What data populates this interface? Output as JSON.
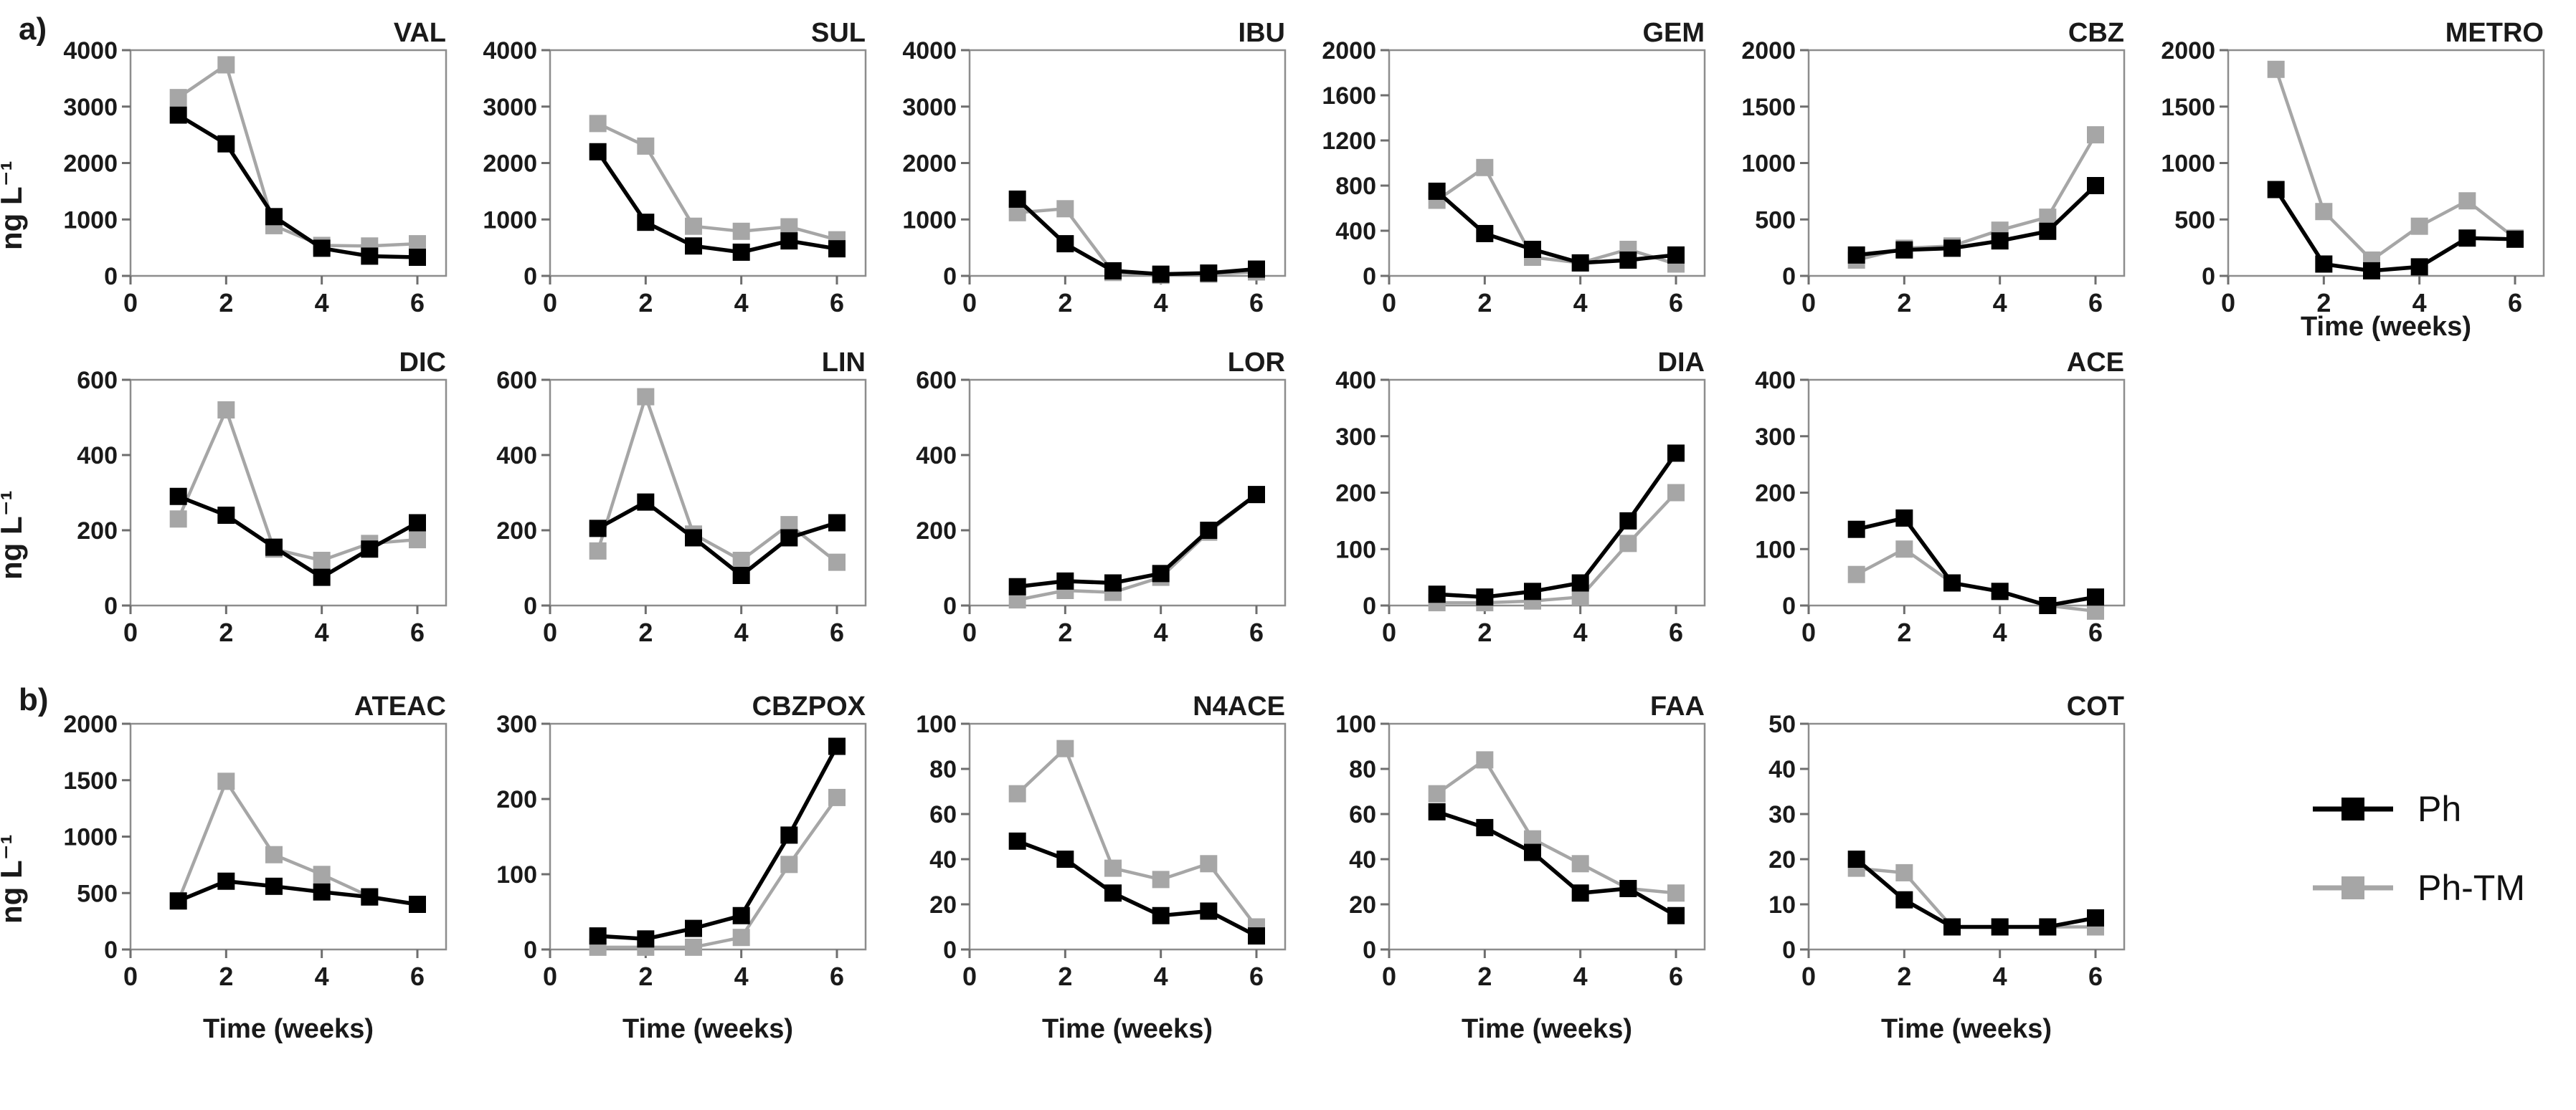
{
  "figure": {
    "panel_a": "a)",
    "panel_b": "b)"
  },
  "axis": {
    "y_label": "ng L⁻¹",
    "x_label": "Time (weeks)"
  },
  "legend": [
    {
      "name": "Ph",
      "color": "#000000"
    },
    {
      "name": "Ph-TM",
      "color": "#a6a6a6"
    }
  ],
  "chart_data": [
    {
      "id": "VAL",
      "row": "a1",
      "type": "line",
      "title": "VAL",
      "x": [
        1,
        2,
        3,
        4,
        5,
        6
      ],
      "xlim": [
        0,
        6.6
      ],
      "xticks": [
        0,
        2,
        4,
        6
      ],
      "ylim": [
        0,
        4000
      ],
      "yticks": [
        0,
        1000,
        2000,
        3000,
        4000
      ],
      "xlabel": false,
      "series": [
        {
          "name": "Ph",
          "values": [
            2850,
            2340,
            1050,
            490,
            350,
            330
          ]
        },
        {
          "name": "Ph-TM",
          "values": [
            3160,
            3740,
            890,
            540,
            530,
            570
          ]
        }
      ]
    },
    {
      "id": "SUL",
      "row": "a1",
      "type": "line",
      "title": "SUL",
      "x": [
        1,
        2,
        3,
        4,
        5,
        6
      ],
      "xlim": [
        0,
        6.6
      ],
      "xticks": [
        0,
        2,
        4,
        6
      ],
      "ylim": [
        0,
        4000
      ],
      "yticks": [
        0,
        1000,
        2000,
        3000,
        4000
      ],
      "xlabel": false,
      "series": [
        {
          "name": "Ph",
          "values": [
            2200,
            950,
            530,
            420,
            620,
            480
          ]
        },
        {
          "name": "Ph-TM",
          "values": [
            2700,
            2300,
            880,
            790,
            870,
            640
          ]
        }
      ]
    },
    {
      "id": "IBU",
      "row": "a1",
      "type": "line",
      "title": "IBU",
      "x": [
        1,
        2,
        3,
        4,
        5,
        6
      ],
      "xlim": [
        0,
        6.6
      ],
      "xticks": [
        0,
        2,
        4,
        6
      ],
      "ylim": [
        0,
        4000
      ],
      "yticks": [
        0,
        1000,
        2000,
        3000,
        4000
      ],
      "xlabel": false,
      "series": [
        {
          "name": "Ph",
          "values": [
            1360,
            570,
            90,
            30,
            50,
            120
          ]
        },
        {
          "name": "Ph-TM",
          "values": [
            1120,
            1190,
            60,
            10,
            30,
            70
          ]
        }
      ]
    },
    {
      "id": "GEM",
      "row": "a1",
      "type": "line",
      "title": "GEM",
      "x": [
        1,
        2,
        3,
        4,
        5,
        6
      ],
      "xlim": [
        0,
        6.6
      ],
      "xticks": [
        0,
        2,
        4,
        6
      ],
      "ylim": [
        0,
        2000
      ],
      "yticks": [
        0,
        400,
        800,
        1200,
        1600,
        2000
      ],
      "xlabel": false,
      "series": [
        {
          "name": "Ph",
          "values": [
            750,
            375,
            235,
            115,
            140,
            185
          ]
        },
        {
          "name": "Ph-TM",
          "values": [
            670,
            960,
            165,
            115,
            235,
            105
          ]
        }
      ]
    },
    {
      "id": "CBZ",
      "row": "a1",
      "type": "line",
      "title": "CBZ",
      "x": [
        1,
        2,
        3,
        4,
        5,
        6
      ],
      "xlim": [
        0,
        6.6
      ],
      "xticks": [
        0,
        2,
        4,
        6
      ],
      "ylim": [
        0,
        2000
      ],
      "yticks": [
        0,
        500,
        1000,
        1500,
        2000
      ],
      "xlabel": false,
      "series": [
        {
          "name": "Ph",
          "values": [
            185,
            230,
            245,
            310,
            395,
            800
          ]
        },
        {
          "name": "Ph-TM",
          "values": [
            140,
            245,
            265,
            405,
            520,
            1250
          ]
        }
      ]
    },
    {
      "id": "METRO",
      "row": "a1",
      "type": "line",
      "title": "METRO",
      "x": [
        1,
        2,
        3,
        4,
        5,
        6
      ],
      "xlim": [
        0,
        6.6
      ],
      "xticks": [
        0,
        2,
        4,
        6
      ],
      "ylim": [
        0,
        2000
      ],
      "yticks": [
        0,
        500,
        1000,
        1500,
        2000
      ],
      "xlabel": true,
      "series": [
        {
          "name": "Ph",
          "values": [
            765,
            105,
            45,
            80,
            335,
            325
          ]
        },
        {
          "name": "Ph-TM",
          "values": [
            1830,
            570,
            140,
            440,
            665,
            335
          ]
        }
      ]
    },
    {
      "id": "DIC",
      "row": "a2",
      "type": "line",
      "title": "DIC",
      "x": [
        1,
        2,
        3,
        4,
        5,
        6
      ],
      "xlim": [
        0,
        6.6
      ],
      "xticks": [
        0,
        2,
        4,
        6
      ],
      "ylim": [
        0,
        600
      ],
      "yticks": [
        0,
        200,
        400,
        600
      ],
      "xlabel": false,
      "series": [
        {
          "name": "Ph",
          "values": [
            290,
            240,
            155,
            75,
            150,
            220
          ]
        },
        {
          "name": "Ph-TM",
          "values": [
            230,
            520,
            150,
            120,
            165,
            175
          ]
        }
      ]
    },
    {
      "id": "LIN",
      "row": "a2",
      "type": "line",
      "title": "LIN",
      "x": [
        1,
        2,
        3,
        4,
        5,
        6
      ],
      "xlim": [
        0,
        6.6
      ],
      "xticks": [
        0,
        2,
        4,
        6
      ],
      "ylim": [
        0,
        600
      ],
      "yticks": [
        0,
        200,
        400,
        600
      ],
      "xlabel": false,
      "series": [
        {
          "name": "Ph",
          "values": [
            205,
            275,
            180,
            80,
            180,
            220
          ]
        },
        {
          "name": "Ph-TM",
          "values": [
            145,
            555,
            190,
            120,
            215,
            115
          ]
        }
      ]
    },
    {
      "id": "LOR",
      "row": "a2",
      "type": "line",
      "title": "LOR",
      "x": [
        1,
        2,
        3,
        4,
        5,
        6
      ],
      "xlim": [
        0,
        6.6
      ],
      "xticks": [
        0,
        2,
        4,
        6
      ],
      "ylim": [
        0,
        600
      ],
      "yticks": [
        0,
        200,
        400,
        600
      ],
      "xlabel": false,
      "series": [
        {
          "name": "Ph",
          "values": [
            50,
            65,
            60,
            85,
            200,
            295
          ]
        },
        {
          "name": "Ph-TM",
          "values": [
            15,
            40,
            35,
            75,
            195,
            295
          ]
        }
      ]
    },
    {
      "id": "DIA",
      "row": "a2",
      "type": "line",
      "title": "DIA",
      "x": [
        1,
        2,
        3,
        4,
        5,
        6
      ],
      "xlim": [
        0,
        6.6
      ],
      "xticks": [
        0,
        2,
        4,
        6
      ],
      "ylim": [
        0,
        400
      ],
      "yticks": [
        0,
        100,
        200,
        300,
        400
      ],
      "xlabel": false,
      "series": [
        {
          "name": "Ph",
          "values": [
            20,
            15,
            25,
            40,
            150,
            270
          ]
        },
        {
          "name": "Ph-TM",
          "values": [
            5,
            5,
            8,
            15,
            110,
            200
          ]
        }
      ]
    },
    {
      "id": "ACE",
      "row": "a2",
      "type": "line",
      "title": "ACE",
      "x": [
        1,
        2,
        3,
        4,
        5,
        6
      ],
      "xlim": [
        0,
        6.6
      ],
      "xticks": [
        0,
        2,
        4,
        6
      ],
      "ylim": [
        0,
        400
      ],
      "yticks": [
        0,
        100,
        200,
        300,
        400
      ],
      "xlabel": false,
      "series": [
        {
          "name": "Ph",
          "values": [
            135,
            155,
            40,
            25,
            0,
            15
          ]
        },
        {
          "name": "Ph-TM",
          "values": [
            55,
            100,
            40,
            25,
            0,
            -10
          ]
        }
      ]
    },
    {
      "id": "ATEAC",
      "row": "b",
      "type": "line",
      "title": "ATEAC",
      "x": [
        1,
        2,
        3,
        4,
        5,
        6
      ],
      "xlim": [
        0,
        6.6
      ],
      "xticks": [
        0,
        2,
        4,
        6
      ],
      "ylim": [
        0,
        2000
      ],
      "yticks": [
        0,
        500,
        1000,
        1500,
        2000
      ],
      "xlabel": true,
      "series": [
        {
          "name": "Ph",
          "values": [
            430,
            605,
            560,
            510,
            465,
            400
          ]
        },
        {
          "name": "Ph-TM",
          "values": [
            430,
            1490,
            840,
            665,
            470,
            400
          ]
        }
      ]
    },
    {
      "id": "CBZPOX",
      "row": "b",
      "type": "line",
      "title": "CBZPOX",
      "x": [
        1,
        2,
        3,
        4,
        5,
        6
      ],
      "xlim": [
        0,
        6.6
      ],
      "xticks": [
        0,
        2,
        4,
        6
      ],
      "ylim": [
        0,
        300
      ],
      "yticks": [
        0,
        100,
        200,
        300
      ],
      "xlabel": true,
      "series": [
        {
          "name": "Ph",
          "values": [
            18,
            14,
            28,
            45,
            152,
            270
          ]
        },
        {
          "name": "Ph-TM",
          "values": [
            3,
            3,
            3,
            16,
            113,
            202
          ]
        }
      ]
    },
    {
      "id": "N4ACE",
      "row": "b",
      "type": "line",
      "title": "N4ACE",
      "x": [
        1,
        2,
        3,
        4,
        5,
        6
      ],
      "xlim": [
        0,
        6.6
      ],
      "xticks": [
        0,
        2,
        4,
        6
      ],
      "ylim": [
        0,
        100
      ],
      "yticks": [
        0,
        20,
        40,
        60,
        80,
        100
      ],
      "xlabel": true,
      "series": [
        {
          "name": "Ph",
          "values": [
            48,
            40,
            25,
            15,
            17,
            6
          ]
        },
        {
          "name": "Ph-TM",
          "values": [
            69,
            89,
            36,
            31,
            38,
            10
          ]
        }
      ]
    },
    {
      "id": "FAA",
      "row": "b",
      "type": "line",
      "title": "FAA",
      "x": [
        1,
        2,
        3,
        4,
        5,
        6
      ],
      "xlim": [
        0,
        6.6
      ],
      "xticks": [
        0,
        2,
        4,
        6
      ],
      "ylim": [
        0,
        100
      ],
      "yticks": [
        0,
        20,
        40,
        60,
        80,
        100
      ],
      "xlabel": true,
      "series": [
        {
          "name": "Ph",
          "values": [
            61,
            54,
            43,
            25,
            27,
            15
          ]
        },
        {
          "name": "Ph-TM",
          "values": [
            69,
            84,
            49,
            38,
            27,
            25
          ]
        }
      ]
    },
    {
      "id": "COT",
      "row": "b",
      "type": "line",
      "title": "COT",
      "x": [
        1,
        2,
        3,
        4,
        5,
        6
      ],
      "xlim": [
        0,
        6.6
      ],
      "xticks": [
        0,
        2,
        4,
        6
      ],
      "ylim": [
        0,
        50
      ],
      "yticks": [
        0,
        10,
        20,
        30,
        40,
        50
      ],
      "xlabel": true,
      "series": [
        {
          "name": "Ph",
          "values": [
            20,
            11,
            5,
            5,
            5,
            7
          ]
        },
        {
          "name": "Ph-TM",
          "values": [
            18,
            17,
            5,
            5,
            5,
            5
          ]
        }
      ]
    }
  ]
}
